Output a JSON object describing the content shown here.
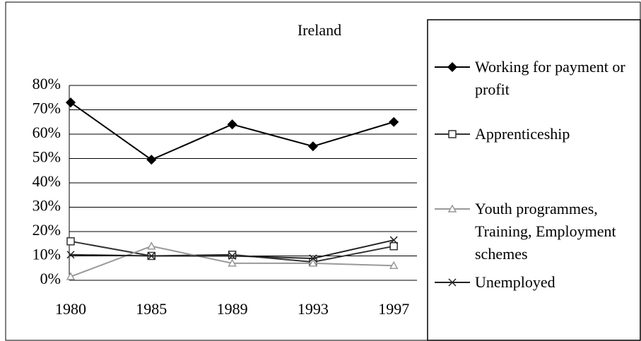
{
  "chart_data": {
    "type": "line",
    "title": "Ireland",
    "categories": [
      "1980",
      "1985",
      "1989",
      "1993",
      "1997"
    ],
    "ylim": [
      0,
      80
    ],
    "yticks": [
      {
        "value": 0,
        "label": "0%"
      },
      {
        "value": 10,
        "label": "10%"
      },
      {
        "value": 20,
        "label": "20%"
      },
      {
        "value": 30,
        "label": "30%"
      },
      {
        "value": 40,
        "label": "40%"
      },
      {
        "value": 50,
        "label": "50%"
      },
      {
        "value": 60,
        "label": "60%"
      },
      {
        "value": 70,
        "label": "70%"
      },
      {
        "value": 80,
        "label": "80%"
      }
    ],
    "grid": true,
    "legend": "right",
    "series": [
      {
        "name": "Working for payment or profit",
        "color": "#000000",
        "marker": "diamond",
        "values": [
          73,
          49.5,
          64,
          55,
          65
        ]
      },
      {
        "name": "Apprenticeship",
        "color": "#333333",
        "marker": "square",
        "values": [
          16,
          10,
          10.5,
          7.5,
          14
        ]
      },
      {
        "name": "Youth programmes, Training, Employment schemes",
        "color": "#999999",
        "marker": "triangle",
        "values": [
          1.5,
          14,
          7,
          7,
          6
        ]
      },
      {
        "name": "Unemployed",
        "color": "#222222",
        "marker": "x",
        "values": [
          10.5,
          10,
          10,
          9,
          16.5
        ]
      }
    ]
  }
}
